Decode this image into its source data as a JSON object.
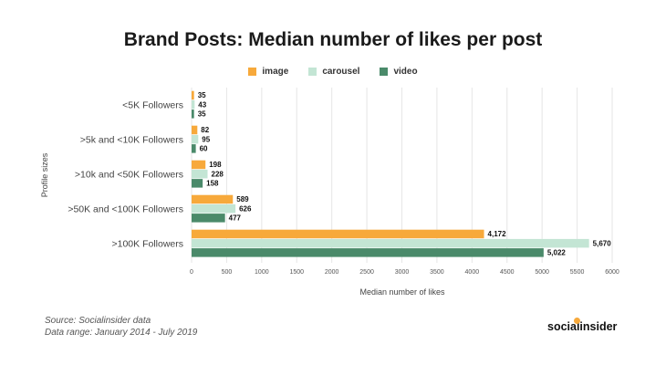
{
  "chart_data": {
    "type": "bar",
    "orientation": "horizontal",
    "title": "Brand Posts: Median number of likes per post",
    "xlabel": "Median number of likes",
    "ylabel": "Profile sizes",
    "xlim": [
      0,
      6000
    ],
    "xticks": [
      0,
      500,
      1000,
      1500,
      2000,
      2500,
      3000,
      3500,
      4000,
      4500,
      5000,
      5500,
      6000
    ],
    "xtick_labels": [
      "0",
      "500",
      "1000",
      "1500",
      "2000",
      "2500",
      "3000",
      "3500",
      "4000",
      "4500",
      "5000",
      "5500",
      "6000"
    ],
    "grid": true,
    "legend_position": "top-center",
    "categories": [
      "<5K Followers",
      ">5k and <10K Followers",
      ">10k and <50K Followers",
      ">50K and <100K Followers",
      ">100K Followers"
    ],
    "series": [
      {
        "name": "image",
        "color": "#f7a93b",
        "values": [
          35,
          82,
          198,
          589,
          4172
        ],
        "labels": [
          "35",
          "82",
          "198",
          "589",
          "4,172"
        ]
      },
      {
        "name": "carousel",
        "color": "#c3e5d4",
        "values": [
          43,
          95,
          228,
          626,
          5670
        ],
        "labels": [
          "43",
          "95",
          "228",
          "626",
          "5,670"
        ]
      },
      {
        "name": "video",
        "color": "#4a8a6a",
        "values": [
          35,
          60,
          158,
          477,
          5022
        ],
        "labels": [
          "35",
          "60",
          "158",
          "477",
          "5,022"
        ]
      }
    ]
  },
  "footer": {
    "source": "Source: Socialinsider data",
    "range": "Data range: January 2014 - July 2019"
  },
  "brand": {
    "name": "socialinsider",
    "accent": "#f7a93b"
  }
}
